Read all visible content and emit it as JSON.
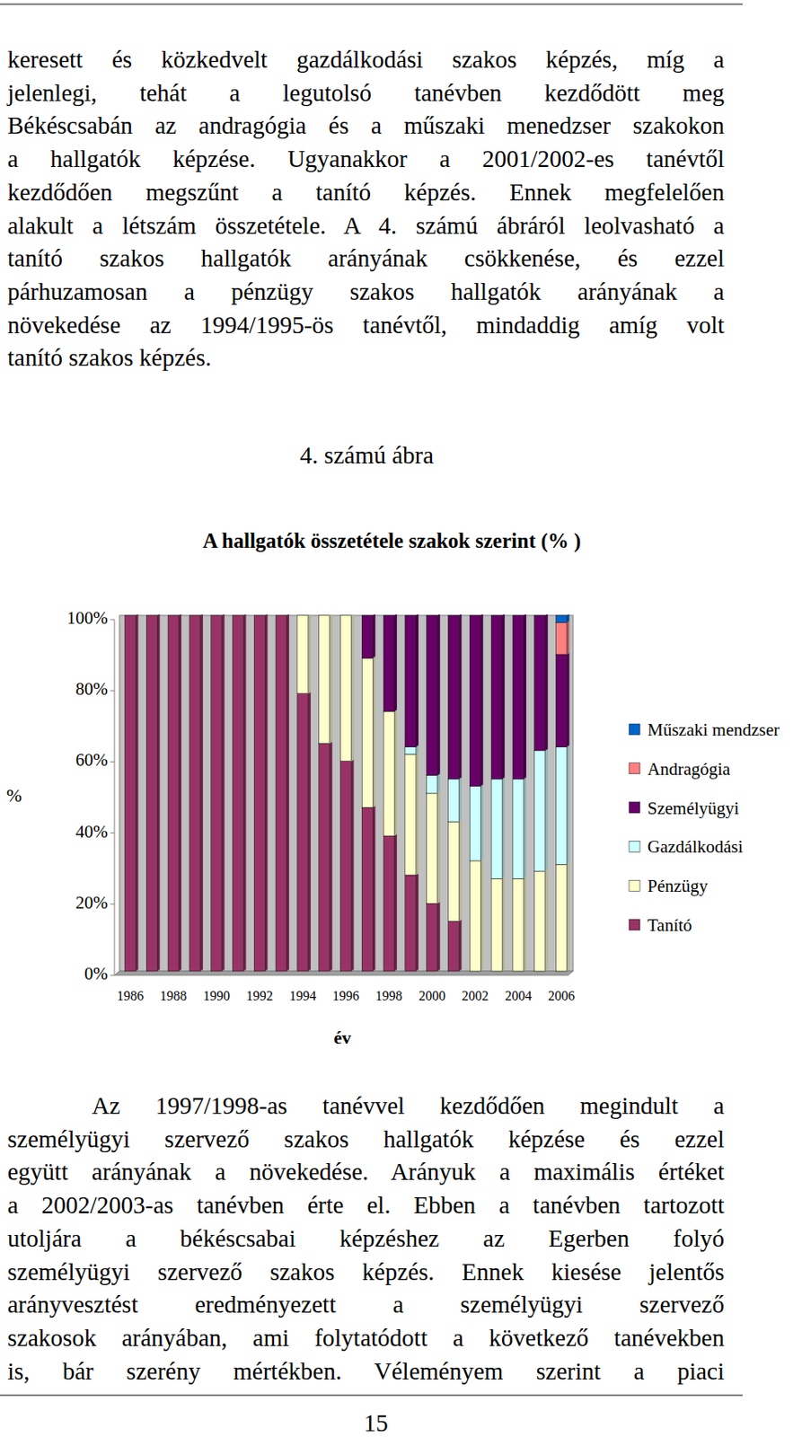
{
  "document": {
    "paragraphs": [
      {
        "lines": [
          "keresett és közkedvelt gazdálkodási szakos képzés, míg a",
          "jelenlegi, tehát a legutolsó tanévben kezdődött meg",
          "Békéscsabán az andragógia és a műszaki menedzser szakokon",
          "a hallgatók képzése. Ugyanakkor a 2001/2002-es tanévtől",
          "kezdődően megszűnt a tanító képzés. Ennek megfelelően",
          "alakult a létszám összetétele. A 4. számú ábráról leolvasható a",
          "tanító szakos hallgatók arányának csökkenése, és ezzel",
          "párhuzamosan a pénzügy szakos hallgatók arányának a",
          "növekedése az 1994/1995-ös tanévtől, mindaddig amíg volt",
          "tanító szakos képzés."
        ]
      },
      {
        "lines": [
          "Az 1997/1998-as tanévvel kezdődően megindult a",
          "személyügyi szervező szakos hallgatók képzése és ezzel",
          "együtt arányának a növekedése. Arányuk a maximális értéket",
          "a 2002/2003-as tanévben érte el. Ebben a tanévben tartozott",
          "utoljára a békéscsabai képzéshez az Egerben folyó",
          "személyügyi szervező szakos képzés. Ennek kiesése jelentős",
          "arányvesztést eredményezett a személyügyi szervező",
          "szakosok arányában, ami folytatódott a következő tanévekben",
          "is, bár szerény mértékben. Véleményem szerint a piaci"
        ]
      }
    ],
    "figure_label": "4. számú ábra",
    "page_number": "15"
  },
  "chart_data": {
    "type": "bar",
    "stacked": true,
    "title": "A hallgatók összetétele szakok szerint (% )",
    "x_label": "év",
    "y_label": "%",
    "categories": [
      "1986",
      null,
      "1988",
      null,
      "1990",
      null,
      "1992",
      null,
      "1994",
      null,
      "1996",
      null,
      "1998",
      null,
      "2000",
      null,
      "2002",
      null,
      "2004",
      null,
      "2006"
    ],
    "series": [
      {
        "name": "Tanító",
        "color": "#993366",
        "values": [
          100,
          100,
          100,
          100,
          100,
          100,
          100,
          100,
          78,
          64,
          59,
          46,
          38,
          27,
          19,
          14,
          0,
          0,
          0,
          0,
          0
        ]
      },
      {
        "name": "Pénzügy",
        "color": "#ffffcc",
        "values": [
          0,
          0,
          0,
          0,
          0,
          0,
          0,
          0,
          22,
          36,
          41,
          42,
          35,
          34,
          31,
          28,
          31,
          26,
          26,
          28,
          30
        ]
      },
      {
        "name": "Gazdálkodási",
        "color": "#ccffff",
        "values": [
          0,
          0,
          0,
          0,
          0,
          0,
          0,
          0,
          0,
          0,
          0,
          0,
          0,
          2,
          5,
          12,
          21,
          28,
          28,
          34,
          33
        ]
      },
      {
        "name": "Személyügyi",
        "color": "#660066",
        "values": [
          0,
          0,
          0,
          0,
          0,
          0,
          0,
          0,
          0,
          0,
          0,
          12,
          27,
          37,
          45,
          46,
          48,
          46,
          46,
          38,
          26
        ]
      },
      {
        "name": "Andragógia",
        "color": "#ff8080",
        "values": [
          0,
          0,
          0,
          0,
          0,
          0,
          0,
          0,
          0,
          0,
          0,
          0,
          0,
          0,
          0,
          0,
          0,
          0,
          0,
          0,
          9
        ]
      },
      {
        "name": "Műszaki mendzser",
        "color": "#0066cc",
        "values": [
          0,
          0,
          0,
          0,
          0,
          0,
          0,
          0,
          0,
          0,
          0,
          0,
          0,
          0,
          0,
          0,
          0,
          0,
          0,
          0,
          2
        ]
      }
    ],
    "ylim": [
      0,
      100
    ],
    "yticks": [
      {
        "value": 0,
        "label": "0%"
      },
      {
        "value": 20,
        "label": "20%"
      },
      {
        "value": 40,
        "label": "40%"
      },
      {
        "value": 60,
        "label": "60%"
      },
      {
        "value": 80,
        "label": "80%"
      },
      {
        "value": 100,
        "label": "100%"
      }
    ],
    "legend": "right",
    "grid": false
  }
}
